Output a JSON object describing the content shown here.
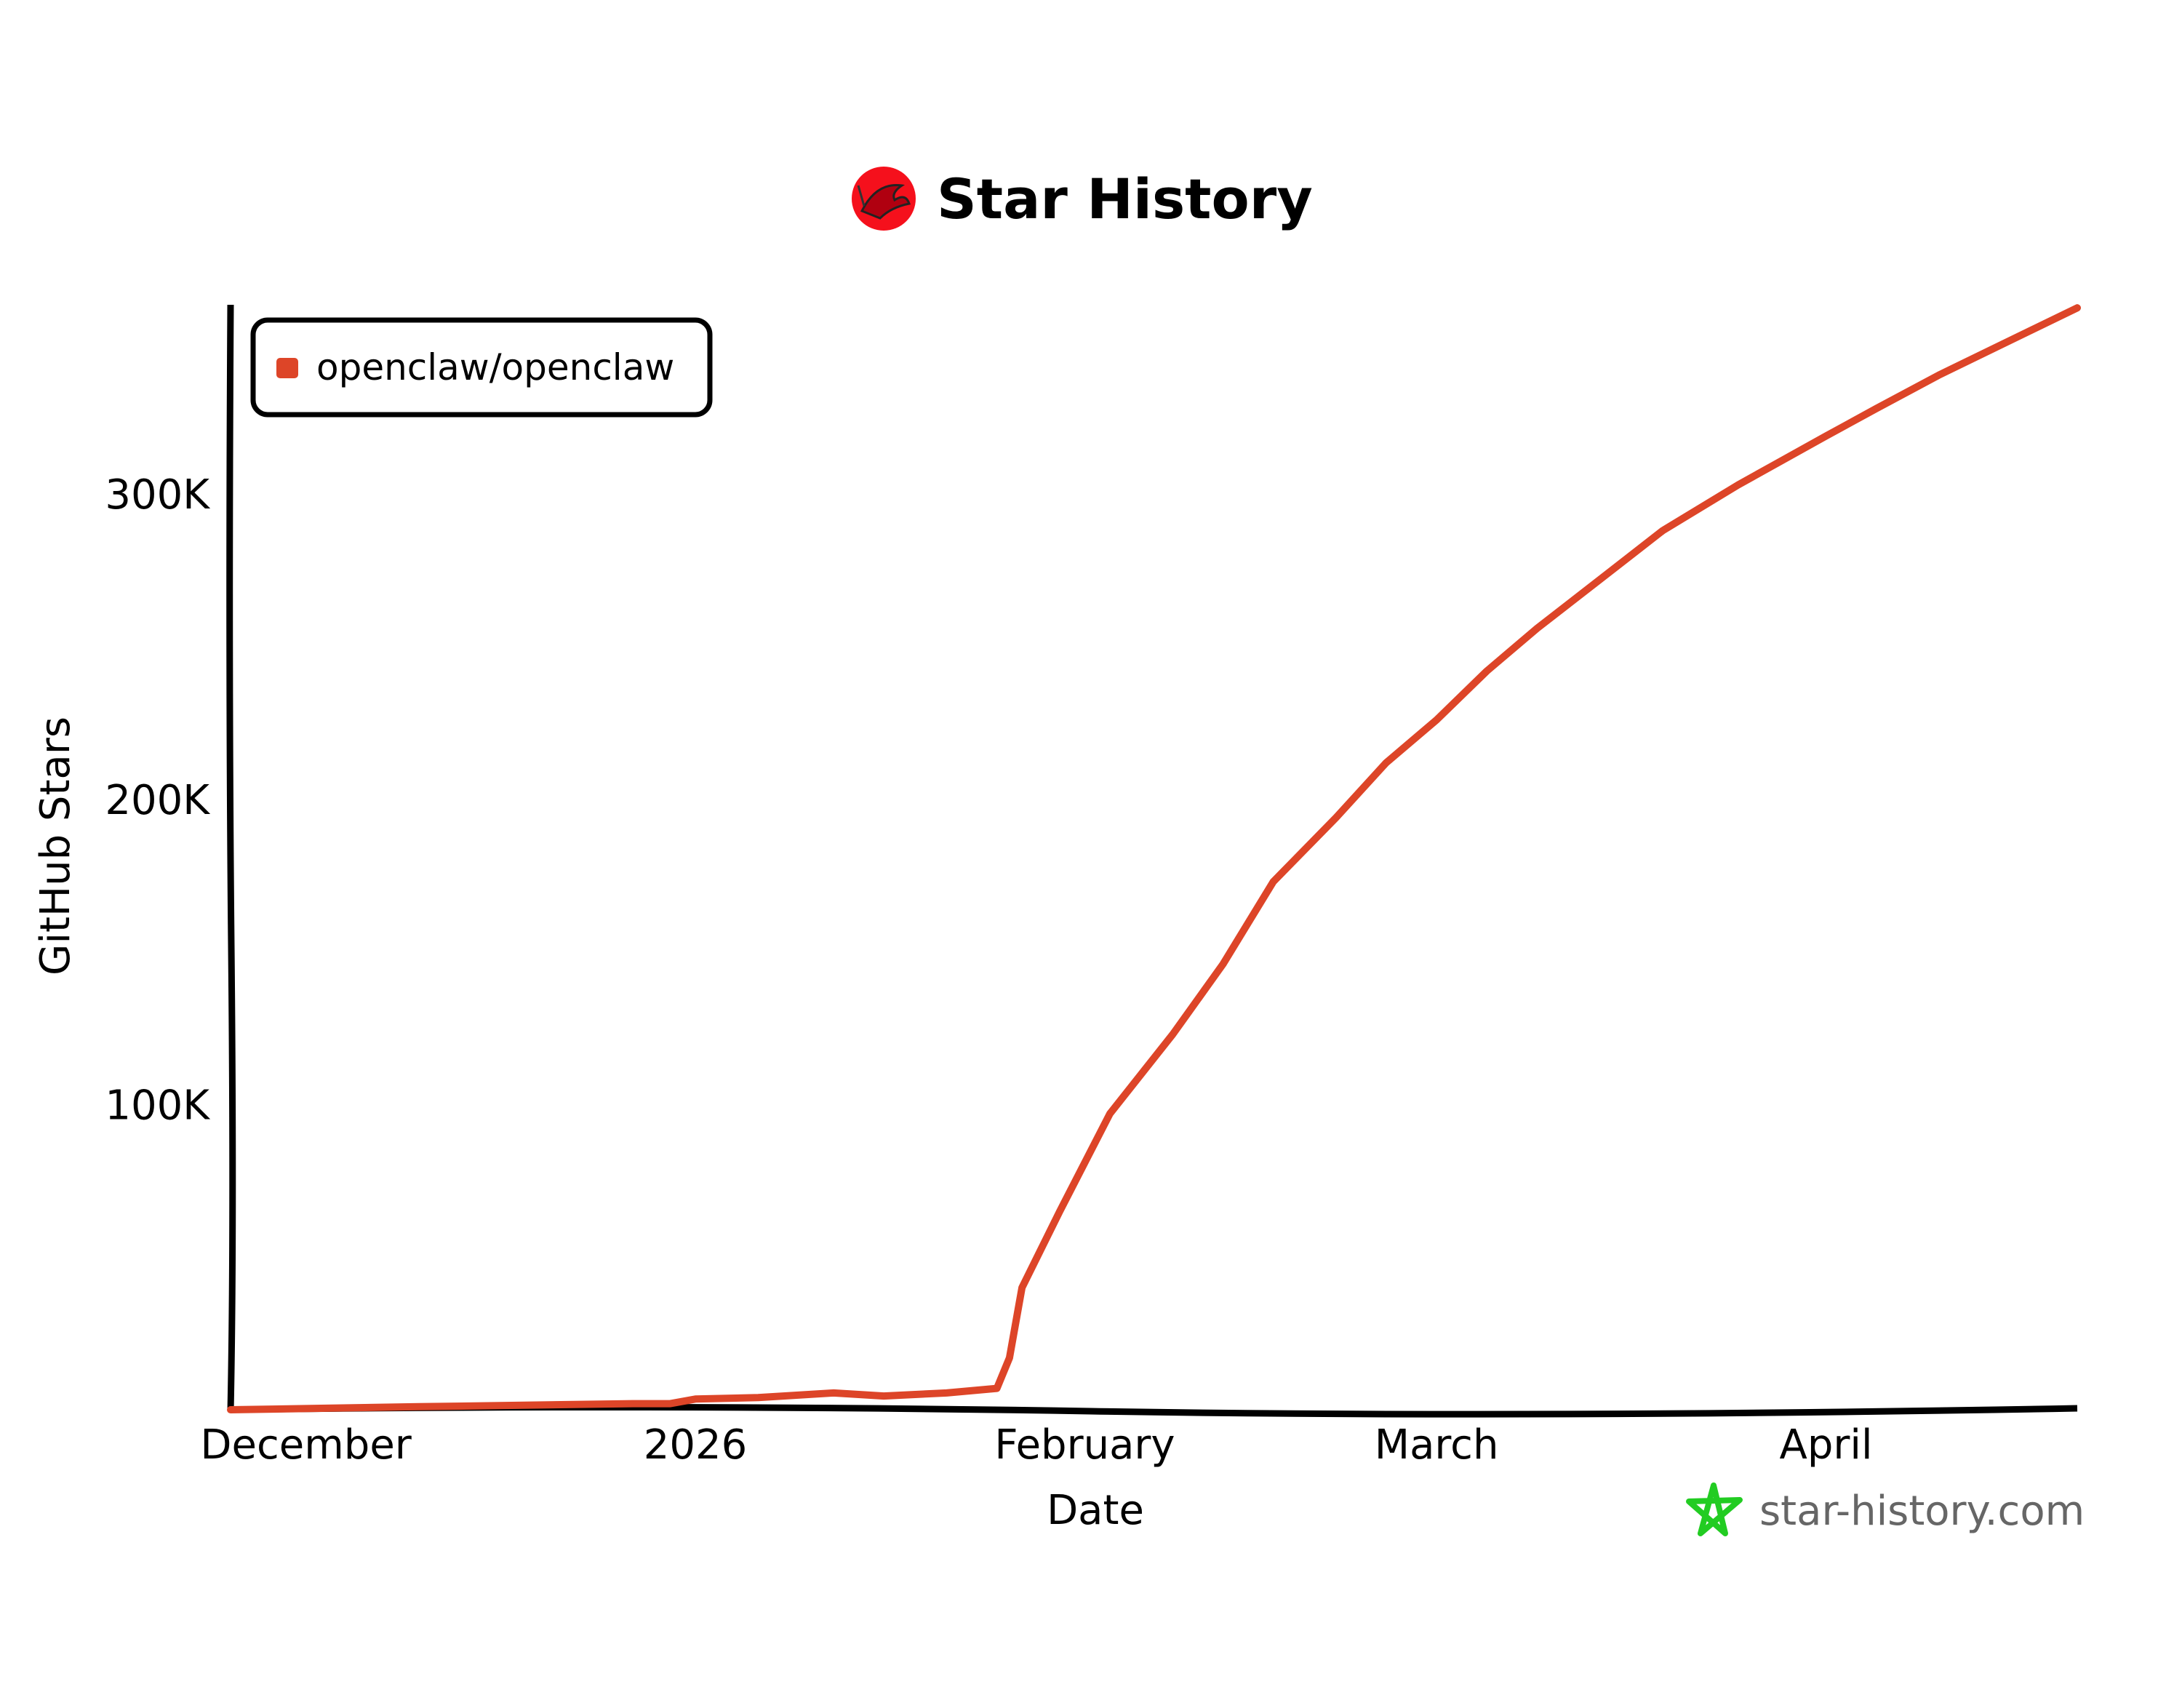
{
  "title": "Star History",
  "logo_icon": "red-lobster-circle-logo",
  "watermark": {
    "text": "star-history.com",
    "icon": "green-star-icon",
    "color": "#22cc22"
  },
  "chart_data": {
    "type": "line",
    "title": "Star History",
    "xlabel": "Date",
    "ylabel": "GitHub Stars",
    "xlim": [
      "2025-11-25",
      "2026-04-21"
    ],
    "ylim": [
      0,
      362000
    ],
    "grid": false,
    "legend_position": "top-left",
    "x_ticks": [
      {
        "date": "2025-12-01",
        "label": "December"
      },
      {
        "date": "2026-01-01",
        "label": "2026"
      },
      {
        "date": "2026-02-01",
        "label": "February"
      },
      {
        "date": "2026-03-01",
        "label": "March"
      },
      {
        "date": "2026-04-01",
        "label": "April"
      }
    ],
    "y_ticks": [
      {
        "value": 100000,
        "label": "100K"
      },
      {
        "value": 200000,
        "label": "200K"
      },
      {
        "value": 300000,
        "label": "300K"
      }
    ],
    "series": [
      {
        "name": "openclaw/openclaw",
        "color": "#dd4528",
        "points": [
          [
            "2025-11-25",
            0
          ],
          [
            "2025-12-10",
            1000
          ],
          [
            "2025-12-27",
            2000
          ],
          [
            "2025-12-30",
            2000
          ],
          [
            "2026-01-01",
            3500
          ],
          [
            "2026-01-06",
            4000
          ],
          [
            "2026-01-12",
            5500
          ],
          [
            "2026-01-16",
            4500
          ],
          [
            "2026-01-21",
            5500
          ],
          [
            "2026-01-25",
            7000
          ],
          [
            "2026-01-26",
            17000
          ],
          [
            "2026-01-27",
            40000
          ],
          [
            "2026-01-30",
            65000
          ],
          [
            "2026-02-03",
            97000
          ],
          [
            "2026-02-08",
            123000
          ],
          [
            "2026-02-12",
            146000
          ],
          [
            "2026-02-16",
            173000
          ],
          [
            "2026-02-21",
            194000
          ],
          [
            "2026-02-25",
            212000
          ],
          [
            "2026-03-01",
            226000
          ],
          [
            "2026-03-05",
            242000
          ],
          [
            "2026-03-09",
            256000
          ],
          [
            "2026-03-14",
            272000
          ],
          [
            "2026-03-19",
            288000
          ],
          [
            "2026-03-25",
            303000
          ],
          [
            "2026-04-01",
            319000
          ],
          [
            "2026-04-05",
            328000
          ],
          [
            "2026-04-10",
            339000
          ],
          [
            "2026-04-15",
            349000
          ],
          [
            "2026-04-21",
            361000
          ]
        ]
      }
    ]
  }
}
